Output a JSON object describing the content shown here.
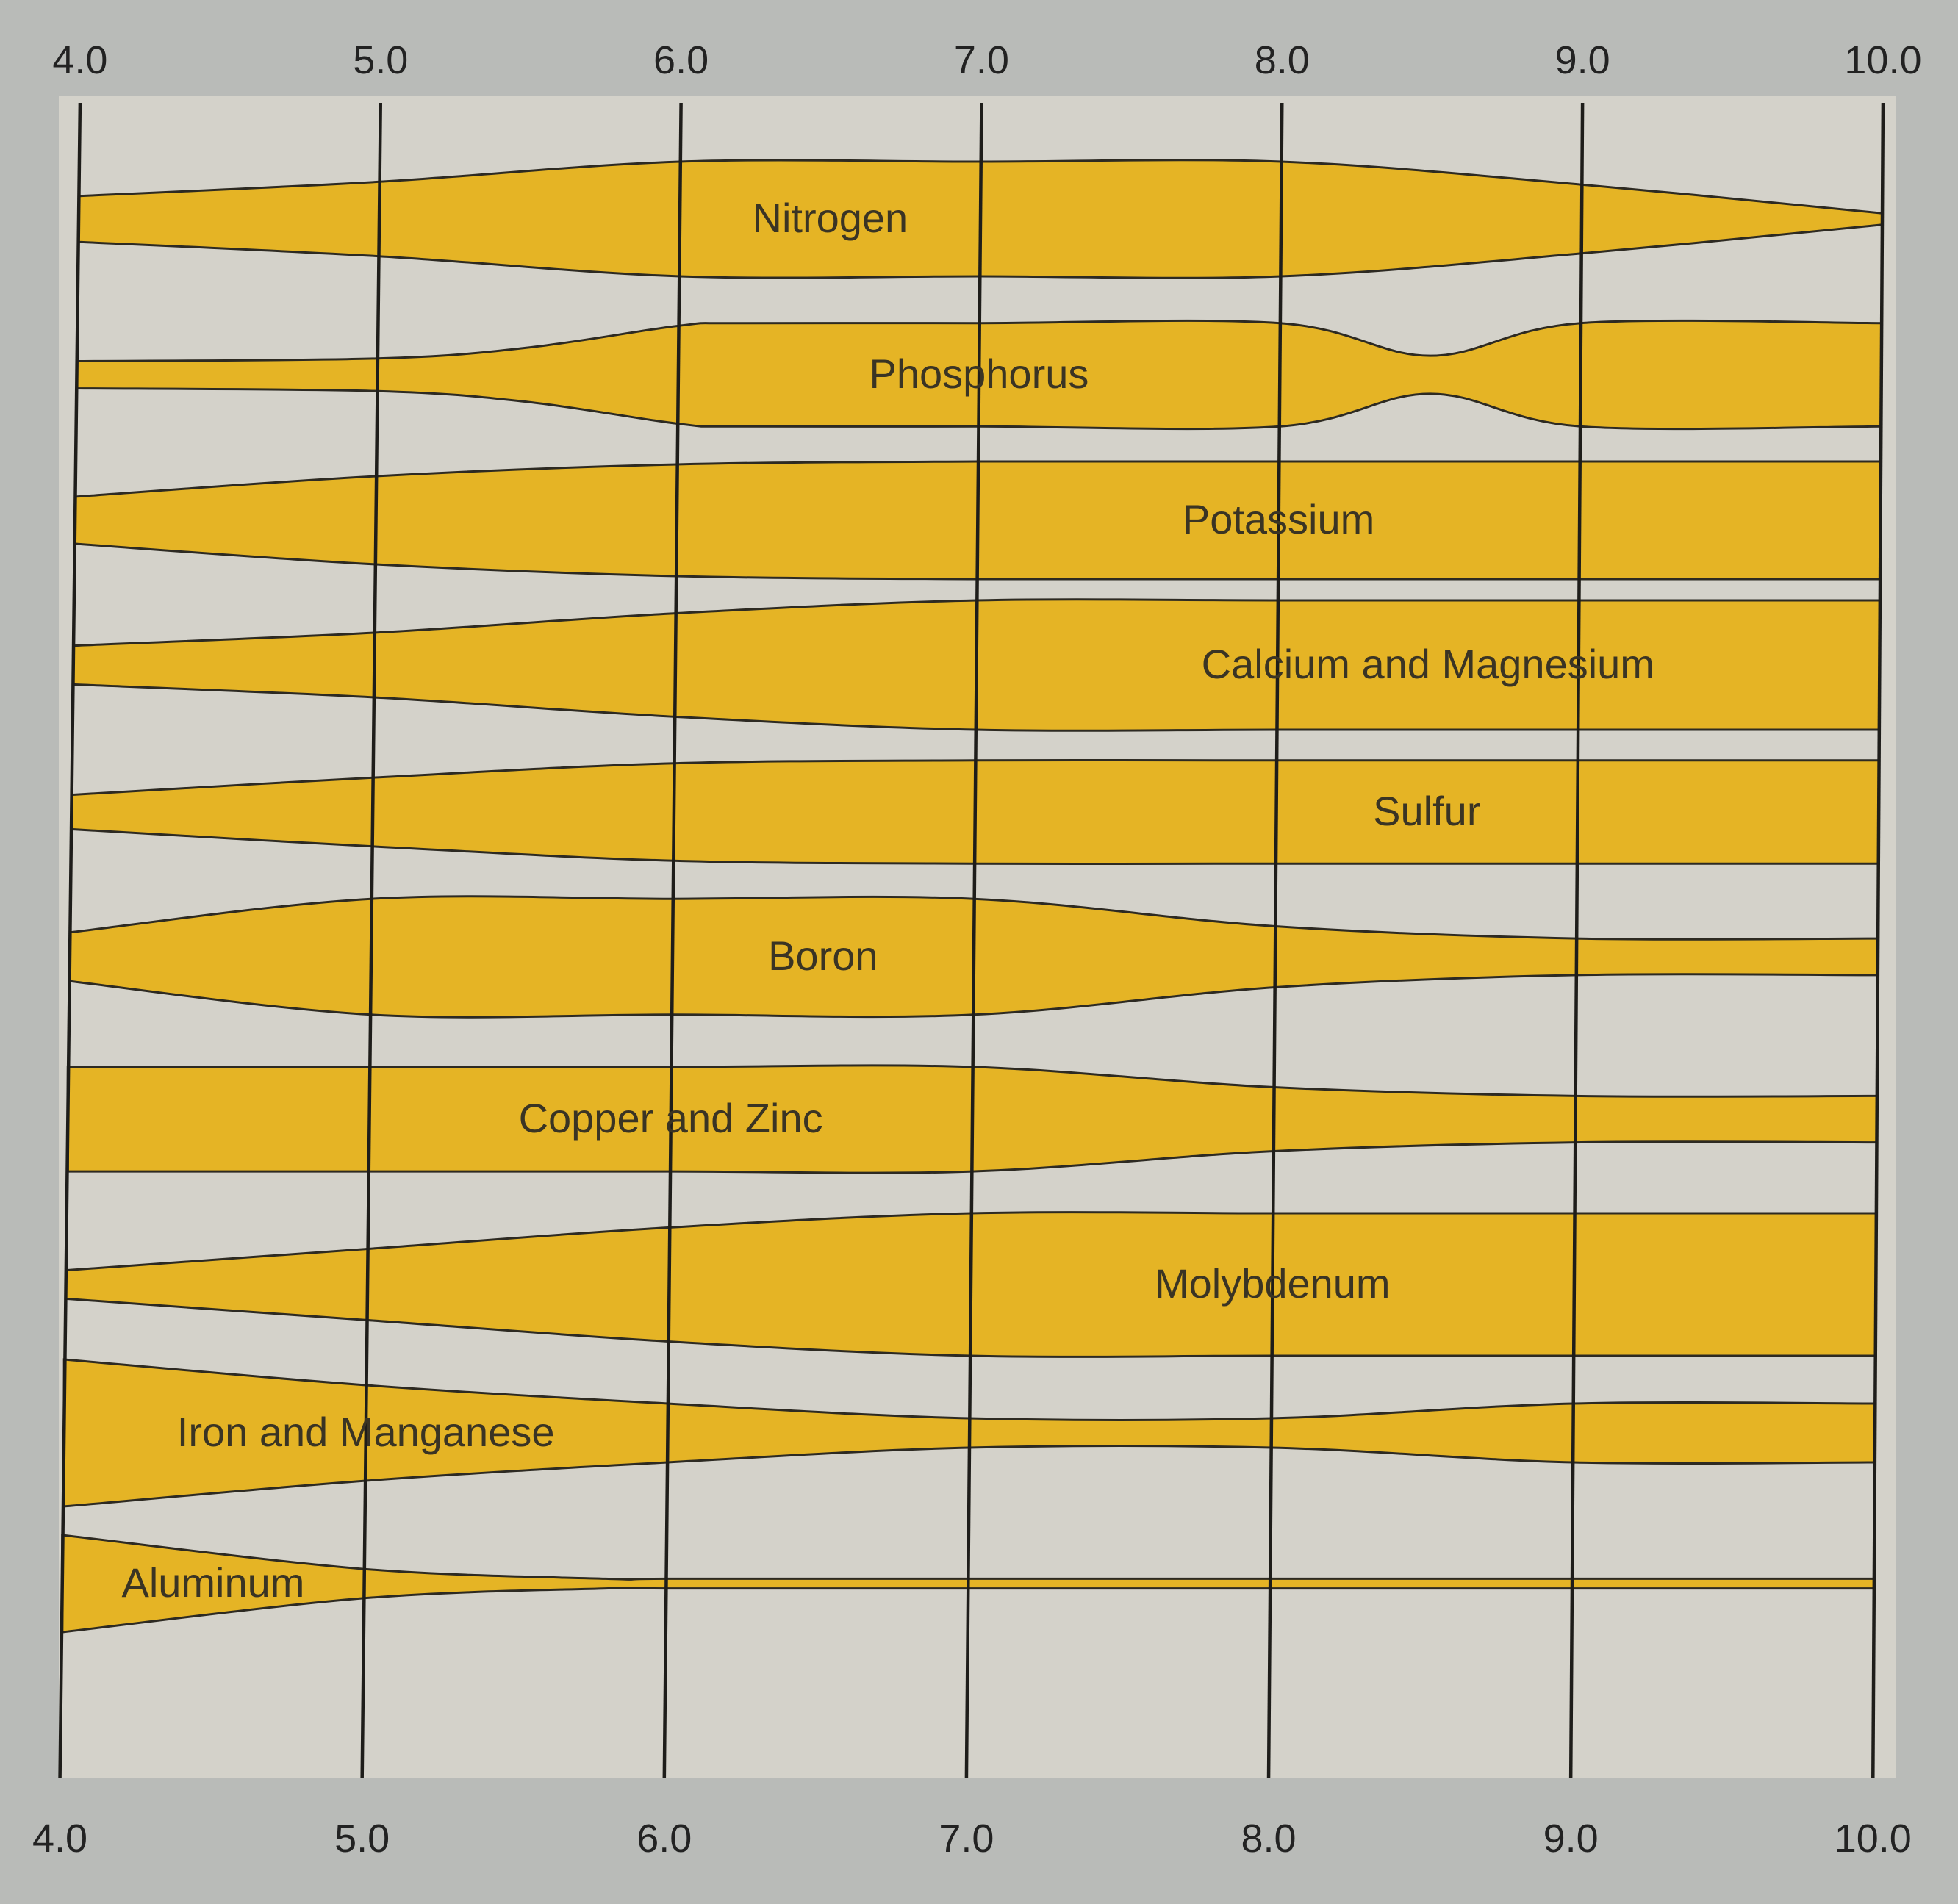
{
  "chart_data": {
    "type": "area",
    "x_ticks": [
      "4.0",
      "5.0",
      "6.0",
      "7.0",
      "8.0",
      "9.0",
      "10.0"
    ],
    "xlim": [
      4.0,
      10.0
    ],
    "grid": true,
    "colors": {
      "band_fill": "#e5b425",
      "background": "#d4d2ca",
      "outline": "#2d2a22",
      "text": "#3a3424"
    },
    "series": [
      {
        "name": "Nitrogen",
        "x": [
          4.0,
          5.0,
          6.0,
          7.0,
          8.0,
          9.0,
          10.0
        ],
        "width": [
          0.4,
          0.65,
          1.0,
          1.0,
          1.0,
          0.6,
          0.1
        ]
      },
      {
        "name": "Phosphorus",
        "x": [
          4.0,
          5.0,
          5.5,
          6.0,
          6.2,
          7.0,
          8.0,
          8.5,
          9.0,
          10.0
        ],
        "width": [
          0.25,
          0.3,
          0.5,
          0.9,
          0.95,
          0.95,
          0.95,
          0.35,
          0.95,
          0.95
        ]
      },
      {
        "name": "Potassium",
        "x": [
          4.0,
          5.0,
          6.0,
          7.0,
          8.0,
          9.0,
          10.0
        ],
        "width": [
          0.4,
          0.75,
          0.95,
          1.0,
          1.0,
          1.0,
          1.0
        ]
      },
      {
        "name": "Calcium and Magnesium",
        "x": [
          4.0,
          5.0,
          6.0,
          7.0,
          8.0,
          9.0,
          10.0
        ],
        "width": [
          0.3,
          0.5,
          0.8,
          1.0,
          1.0,
          1.0,
          1.0
        ]
      },
      {
        "name": "Sulfur",
        "x": [
          4.0,
          5.0,
          6.0,
          7.0,
          8.0,
          9.0,
          10.0
        ],
        "width": [
          0.3,
          0.6,
          0.85,
          0.9,
          0.9,
          0.9,
          0.9
        ]
      },
      {
        "name": "Boron",
        "x": [
          4.0,
          5.0,
          6.0,
          7.0,
          8.0,
          9.0,
          10.0
        ],
        "width": [
          0.4,
          0.95,
          0.95,
          0.95,
          0.5,
          0.3,
          0.3
        ]
      },
      {
        "name": "Copper and Zinc",
        "x": [
          4.0,
          5.0,
          6.0,
          7.0,
          8.0,
          9.0,
          10.0
        ],
        "width": [
          0.9,
          0.9,
          0.9,
          0.9,
          0.55,
          0.4,
          0.4
        ]
      },
      {
        "name": "Molybdenum",
        "x": [
          4.0,
          5.0,
          6.0,
          7.0,
          8.0,
          9.0,
          10.0
        ],
        "width": [
          0.2,
          0.5,
          0.8,
          1.0,
          1.0,
          1.0,
          1.0
        ]
      },
      {
        "name": "Iron and Manganese",
        "x": [
          4.0,
          5.0,
          6.0,
          7.0,
          8.0,
          9.0,
          10.0
        ],
        "width": [
          1.0,
          0.65,
          0.4,
          0.2,
          0.2,
          0.4,
          0.4
        ]
      },
      {
        "name": "Aluminum",
        "x": [
          4.0,
          5.0,
          5.8,
          6.0,
          7.0,
          8.0,
          9.0,
          10.0
        ],
        "width": [
          1.0,
          0.3,
          0.1,
          0.1,
          0.1,
          0.1,
          0.1,
          0.1
        ]
      }
    ]
  }
}
